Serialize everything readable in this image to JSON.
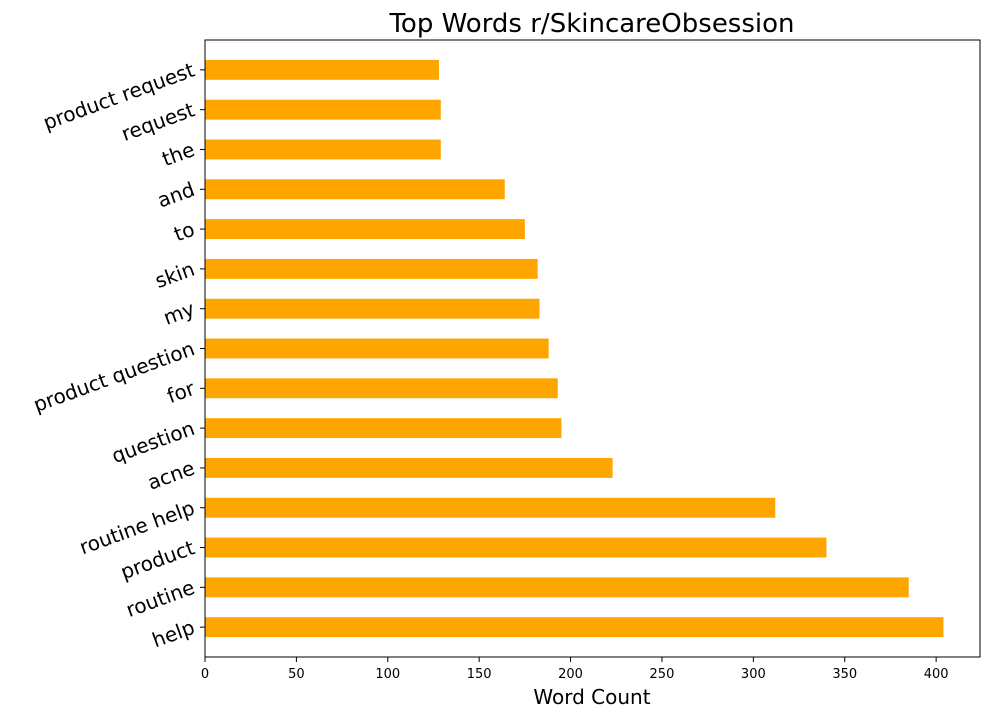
{
  "chart_data": {
    "type": "bar",
    "orientation": "horizontal",
    "title": "Top Words r/SkincareObsession",
    "xlabel": "Word Count",
    "ylabel": "",
    "xlim": [
      0,
      424
    ],
    "xticks": [
      0,
      50,
      100,
      150,
      200,
      250,
      300,
      350,
      400
    ],
    "grid": false,
    "bar_color": "#FFA500",
    "categories": [
      "help",
      "routine",
      "product",
      "routine help",
      "acne",
      "question",
      "for",
      "product question",
      "my",
      "skin",
      "to",
      "and",
      "the",
      "request",
      "product request"
    ],
    "values": [
      404,
      385,
      340,
      312,
      223,
      195,
      193,
      188,
      183,
      182,
      175,
      164,
      129,
      129,
      128
    ]
  }
}
